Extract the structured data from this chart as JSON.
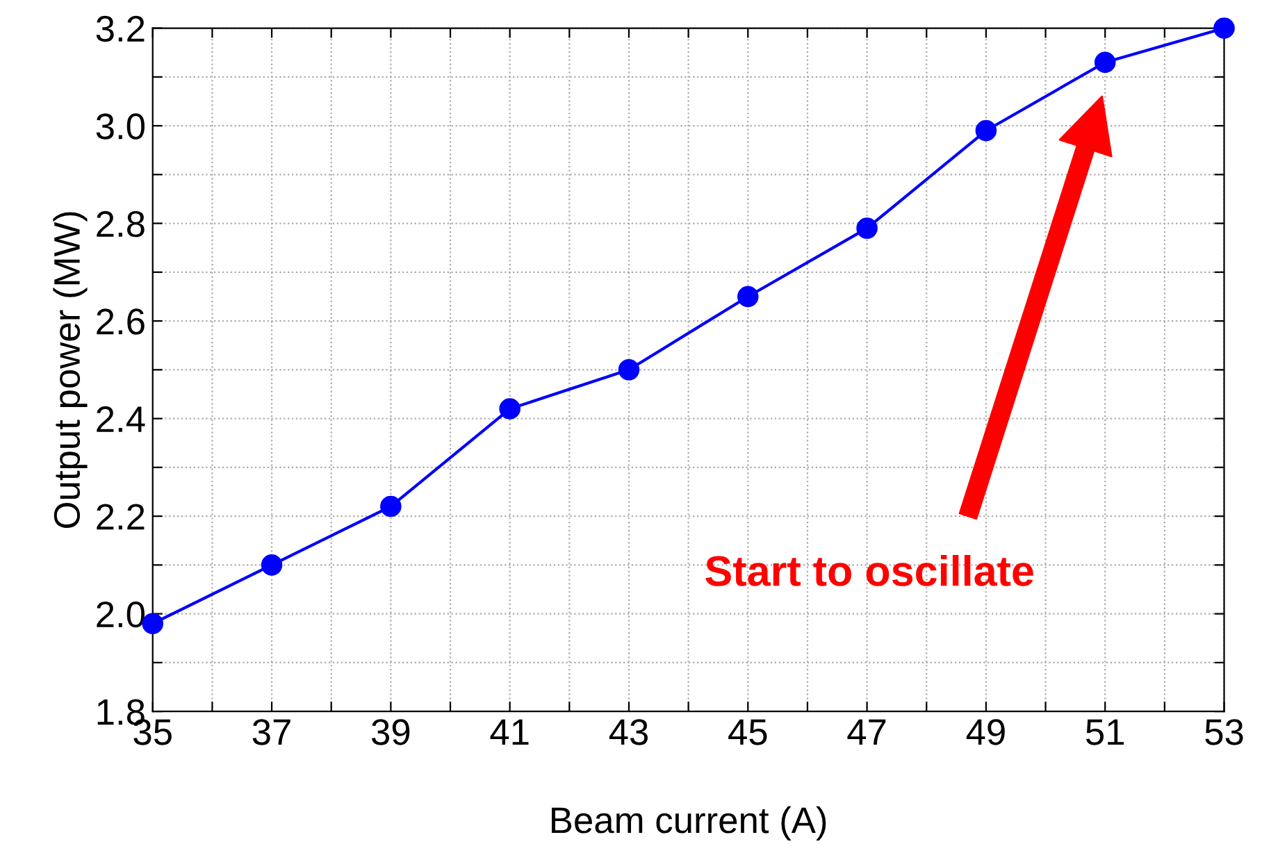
{
  "chart_data": {
    "type": "line",
    "xlabel": "Beam current (A)",
    "ylabel": "Output power (MW)",
    "x": [
      35,
      37,
      39,
      41,
      43,
      45,
      47,
      49,
      51,
      53
    ],
    "series": [
      {
        "color": "#0000ff",
        "values": [
          1.98,
          2.1,
          2.22,
          2.42,
          2.5,
          2.65,
          2.79,
          2.99,
          3.13,
          3.2
        ]
      }
    ],
    "xlim": [
      35,
      53
    ],
    "xticks": [
      35,
      {
        "value": 36,
        "label": null
      },
      37,
      {
        "value": 38,
        "label": null
      },
      39,
      {
        "value": 40,
        "label": null
      },
      41,
      {
        "value": 42,
        "label": null
      },
      43,
      {
        "value": 44,
        "label": null
      },
      45,
      {
        "value": 46,
        "label": null
      },
      47,
      {
        "value": 48,
        "label": null
      },
      49,
      {
        "value": 50,
        "label": null
      },
      51,
      {
        "value": 52,
        "label": null
      },
      53
    ],
    "ylim": [
      1.8,
      3.2
    ],
    "yticks": [
      {
        "value": 1.8,
        "label": "1.8"
      },
      {
        "value": 1.9,
        "label": null
      },
      {
        "value": 2.0,
        "label": "2.0"
      },
      {
        "value": 2.1,
        "label": null
      },
      {
        "value": 2.2,
        "label": "2.2"
      },
      {
        "value": 2.3,
        "label": null
      },
      {
        "value": 2.4,
        "label": "2.4"
      },
      {
        "value": 2.5,
        "label": null
      },
      {
        "value": 2.6,
        "label": "2.6"
      },
      {
        "value": 2.7,
        "label": null
      },
      {
        "value": 2.8,
        "label": "2.8"
      },
      {
        "value": 2.9,
        "label": null
      },
      {
        "value": 3.0,
        "label": "3.0"
      },
      {
        "value": 3.1,
        "label": null
      },
      {
        "value": 3.2,
        "label": "3.2"
      }
    ],
    "grid": true,
    "marker": "circle",
    "line_style": "solid",
    "legend": false,
    "annotations": [
      "Start to oscillate"
    ]
  }
}
